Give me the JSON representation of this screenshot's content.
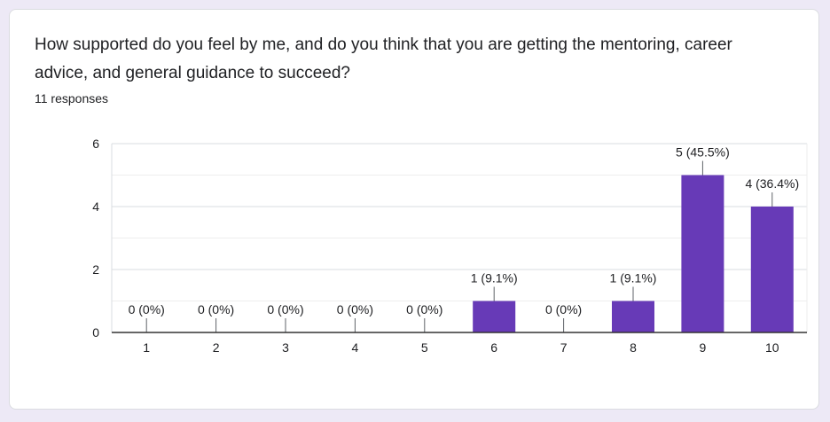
{
  "question": {
    "title": "How supported do you feel by me, and do you think that you are getting the mentoring, career advice, and general guidance to succeed?",
    "responses": "11 responses"
  },
  "chart_data": {
    "type": "bar",
    "categories": [
      "1",
      "2",
      "3",
      "4",
      "5",
      "6",
      "7",
      "8",
      "9",
      "10"
    ],
    "values": [
      0,
      0,
      0,
      0,
      0,
      1,
      0,
      1,
      5,
      4
    ],
    "labels": [
      "0 (0%)",
      "0 (0%)",
      "0 (0%)",
      "0 (0%)",
      "0 (0%)",
      "1 (9.1%)",
      "0 (0%)",
      "1 (9.1%)",
      "5 (45.5%)",
      "4 (36.4%)"
    ],
    "yticks": [
      0,
      2,
      4,
      6
    ],
    "ylim": [
      0,
      6
    ],
    "grid": true,
    "bar_color": "#673ab7"
  }
}
